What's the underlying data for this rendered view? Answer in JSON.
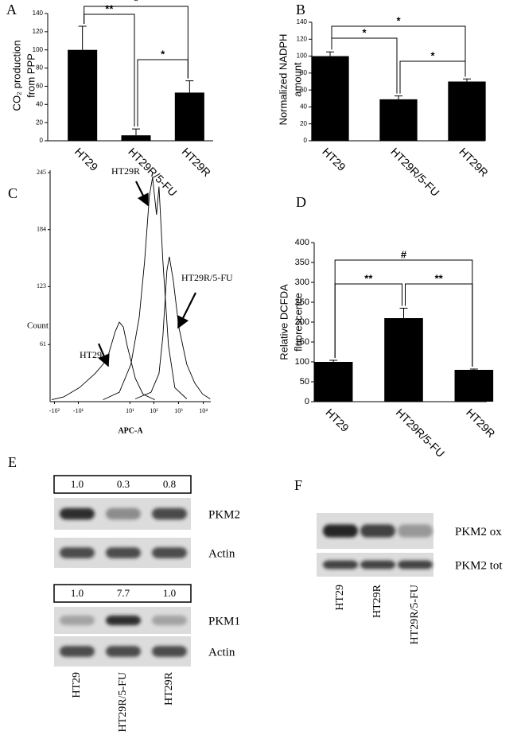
{
  "chart_data": [
    {
      "type": "bar",
      "panel": "A",
      "ylabel": [
        "CO₂ production",
        "from PPP"
      ],
      "categories": [
        "HT29",
        "HT29R/5-FU",
        "HT29R"
      ],
      "values": [
        100,
        6,
        53
      ],
      "errors": [
        26,
        7,
        13
      ],
      "color": "#000000",
      "ylim": [
        0,
        140
      ],
      "yticks": [
        0,
        20,
        40,
        60,
        80,
        100,
        120,
        140
      ],
      "annotations": [
        "**",
        "*",
        "*"
      ]
    },
    {
      "type": "bar",
      "panel": "B",
      "ylabel": [
        "Normalized NADPH",
        "amount"
      ],
      "categories": [
        "HT29",
        "HT29R/5-FU",
        "HT29R"
      ],
      "values": [
        100,
        49,
        70
      ],
      "errors": [
        5,
        4,
        3
      ],
      "color": "#000000",
      "ylim": [
        0,
        140
      ],
      "yticks": [
        0,
        20,
        40,
        60,
        80,
        100,
        120,
        140
      ],
      "annotations": [
        "*",
        "*",
        "*"
      ]
    },
    {
      "type": "line",
      "panel": "C",
      "ylabel": "Count",
      "xlabel": "APC-A",
      "xscale": "symlog",
      "xlim": [
        -150,
        20000
      ],
      "ylim": [
        0,
        245
      ],
      "xticks": [
        {
          "value": -100,
          "label": "-10²"
        },
        {
          "value": -10,
          "label": "-10¹"
        },
        {
          "value": 10,
          "label": "10¹"
        },
        {
          "value": 100,
          "label": "10²"
        },
        {
          "value": 1000,
          "label": "10³"
        },
        {
          "value": 10000,
          "label": "10⁴"
        }
      ],
      "yticks": [
        61,
        123,
        184,
        245
      ],
      "series": [
        {
          "name": "HT29",
          "color": "#000000",
          "x": [
            -130,
            -42,
            -9,
            -1.3,
            0.3,
            1.8,
            3.1,
            4.9,
            7.5,
            17,
            36,
            110
          ],
          "values": [
            2,
            5,
            15,
            30,
            45,
            75,
            85,
            80,
            60,
            25,
            8,
            2
          ]
        },
        {
          "name": "HT29R",
          "color": "#000000",
          "x": [
            -0.1,
            3.1,
            11,
            25,
            42,
            66,
            89,
            129,
            162,
            234,
            393,
            710,
            2150
          ],
          "values": [
            2,
            10,
            40,
            90,
            150,
            220,
            240,
            200,
            230,
            150,
            60,
            15,
            3
          ]
        },
        {
          "name": "HT29R/5-FU",
          "color": "#000000",
          "x": [
            17,
            77,
            162,
            234,
            339,
            424,
            613,
            1027,
            2150,
            4500,
            9400,
            19000
          ],
          "values": [
            3,
            10,
            30,
            70,
            140,
            155,
            130,
            80,
            40,
            20,
            8,
            3
          ]
        }
      ]
    },
    {
      "type": "bar",
      "panel": "D",
      "ylabel": [
        "Relative DCFDA",
        "fluorescence"
      ],
      "categories": [
        "HT29",
        "HT29R/5-FU",
        "HT29R"
      ],
      "values": [
        100,
        210,
        80
      ],
      "errors": [
        4,
        25,
        2
      ],
      "color": "#000000",
      "ylim": [
        0,
        400
      ],
      "yticks": [
        0,
        50,
        100,
        150,
        200,
        250,
        300,
        350,
        400
      ],
      "annotations": [
        "#",
        "**",
        "**"
      ]
    }
  ],
  "blots": [
    {
      "panel": "E",
      "lanes": [
        "HT29",
        "HT29R/5-FU",
        "HT29R"
      ],
      "rows": [
        {
          "label": "PKM2",
          "values": [
            1,
            0.3,
            0.8
          ],
          "value_labels": [
            "1.0",
            "0.3",
            "0.8"
          ]
        },
        {
          "label": "Actin"
        },
        {
          "label": "PKM1",
          "values": [
            1,
            7.7,
            1
          ],
          "value_labels": [
            "1.0",
            "7.7",
            "1.0"
          ]
        },
        {
          "label": "Actin"
        }
      ]
    },
    {
      "panel": "F",
      "lanes": [
        "HT29",
        "HT29R",
        "HT29R/5-FU"
      ],
      "rows": [
        {
          "label": "PKM2 ox"
        },
        {
          "label": "PKM2 tot"
        }
      ]
    }
  ]
}
